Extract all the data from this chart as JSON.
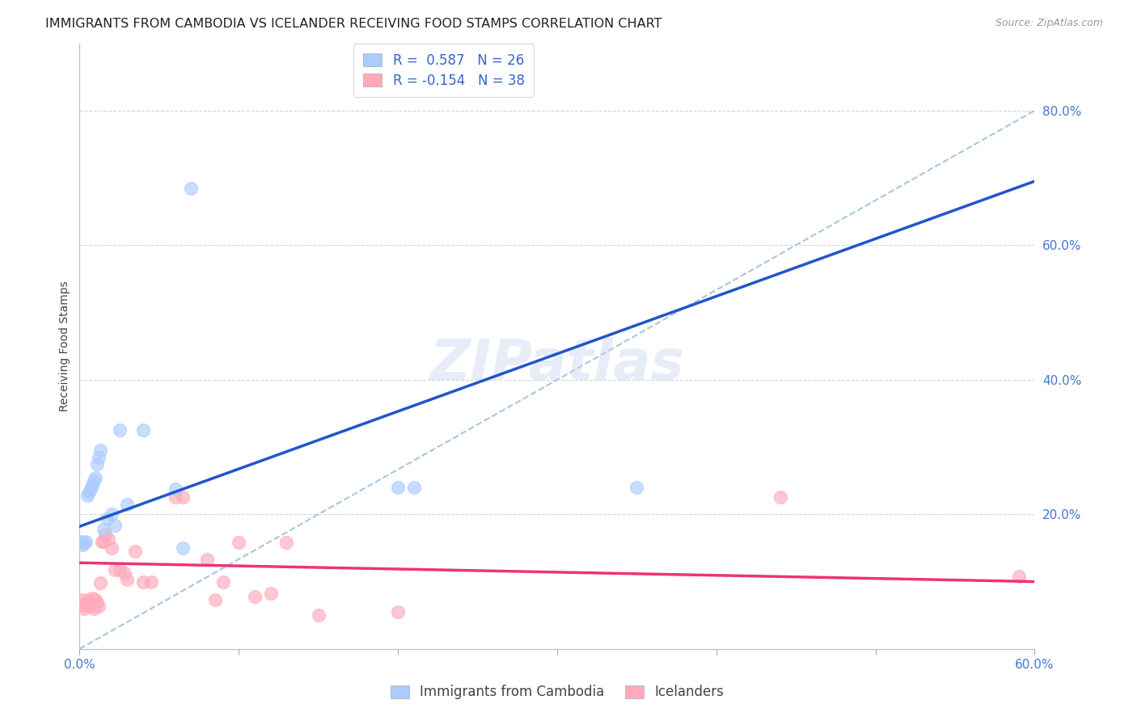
{
  "title": "IMMIGRANTS FROM CAMBODIA VS ICELANDER RECEIVING FOOD STAMPS CORRELATION CHART",
  "source": "Source: ZipAtlas.com",
  "ylabel_label": "Receiving Food Stamps",
  "x_min": 0.0,
  "x_max": 0.6,
  "y_min": 0.0,
  "y_max": 0.9,
  "x_ticks": [
    0.0,
    0.1,
    0.2,
    0.3,
    0.4,
    0.5,
    0.6
  ],
  "y_ticks": [
    0.0,
    0.2,
    0.4,
    0.6,
    0.8
  ],
  "cambodia_R": "0.587",
  "cambodia_N": 26,
  "icelander_R": "-0.154",
  "icelander_N": 38,
  "cambodia_color": "#aaccff",
  "icelander_color": "#ffaabb",
  "cambodia_line_color": "#2255cc",
  "icelander_line_color": "#ee3377",
  "diagonal_line_color": "#99bbdd",
  "cambodia_points": [
    [
      0.001,
      0.16
    ],
    [
      0.002,
      0.155
    ],
    [
      0.003,
      0.158
    ],
    [
      0.004,
      0.16
    ],
    [
      0.005,
      0.228
    ],
    [
      0.006,
      0.233
    ],
    [
      0.007,
      0.238
    ],
    [
      0.008,
      0.243
    ],
    [
      0.009,
      0.25
    ],
    [
      0.01,
      0.255
    ],
    [
      0.011,
      0.275
    ],
    [
      0.012,
      0.285
    ],
    [
      0.013,
      0.295
    ],
    [
      0.015,
      0.178
    ],
    [
      0.017,
      0.193
    ],
    [
      0.02,
      0.2
    ],
    [
      0.022,
      0.183
    ],
    [
      0.025,
      0.325
    ],
    [
      0.03,
      0.215
    ],
    [
      0.04,
      0.325
    ],
    [
      0.06,
      0.238
    ],
    [
      0.065,
      0.15
    ],
    [
      0.07,
      0.685
    ],
    [
      0.2,
      0.24
    ],
    [
      0.21,
      0.24
    ],
    [
      0.35,
      0.24
    ]
  ],
  "icelander_points": [
    [
      0.001,
      0.073
    ],
    [
      0.002,
      0.065
    ],
    [
      0.003,
      0.06
    ],
    [
      0.004,
      0.068
    ],
    [
      0.005,
      0.073
    ],
    [
      0.006,
      0.063
    ],
    [
      0.007,
      0.068
    ],
    [
      0.008,
      0.075
    ],
    [
      0.009,
      0.06
    ],
    [
      0.01,
      0.073
    ],
    [
      0.011,
      0.068
    ],
    [
      0.012,
      0.063
    ],
    [
      0.013,
      0.098
    ],
    [
      0.014,
      0.16
    ],
    [
      0.015,
      0.16
    ],
    [
      0.016,
      0.17
    ],
    [
      0.018,
      0.163
    ],
    [
      0.02,
      0.15
    ],
    [
      0.022,
      0.118
    ],
    [
      0.025,
      0.118
    ],
    [
      0.028,
      0.113
    ],
    [
      0.03,
      0.103
    ],
    [
      0.035,
      0.145
    ],
    [
      0.04,
      0.1
    ],
    [
      0.045,
      0.1
    ],
    [
      0.06,
      0.225
    ],
    [
      0.065,
      0.225
    ],
    [
      0.08,
      0.133
    ],
    [
      0.085,
      0.073
    ],
    [
      0.09,
      0.1
    ],
    [
      0.1,
      0.158
    ],
    [
      0.11,
      0.078
    ],
    [
      0.12,
      0.083
    ],
    [
      0.13,
      0.158
    ],
    [
      0.15,
      0.05
    ],
    [
      0.2,
      0.055
    ],
    [
      0.44,
      0.225
    ],
    [
      0.59,
      0.108
    ]
  ],
  "background_color": "#ffffff",
  "grid_color": "#cccccc",
  "tick_color": "#4477cc",
  "title_fontsize": 11.5,
  "axis_label_fontsize": 10,
  "tick_fontsize": 11,
  "legend_fontsize": 12,
  "cam_line_x0": 0.0,
  "cam_line_y0": 0.182,
  "cam_line_x1": 0.6,
  "cam_line_y1": 0.695,
  "ice_line_x0": 0.0,
  "ice_line_y0": 0.128,
  "ice_line_x1": 0.6,
  "ice_line_y1": 0.1
}
